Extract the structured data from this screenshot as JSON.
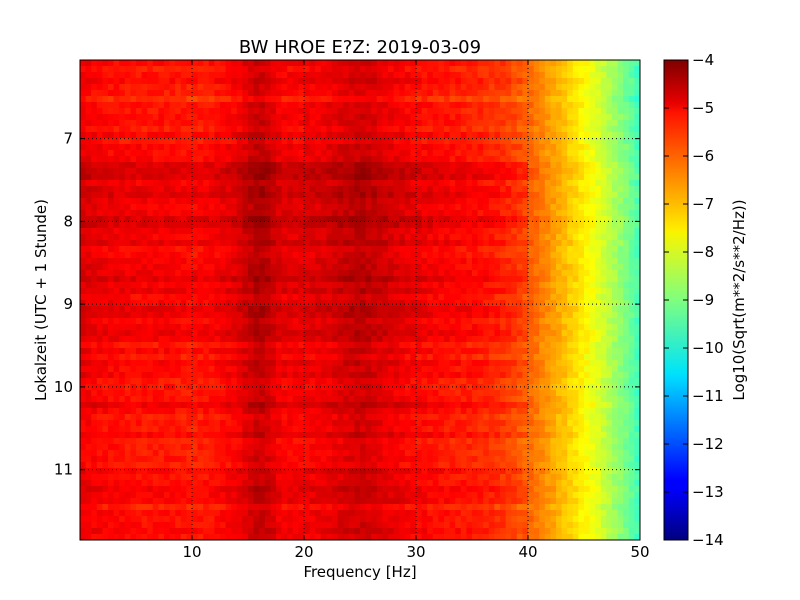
{
  "chart_data": {
    "type": "heatmap",
    "title": "BW HROE E?Z: 2019-03-09",
    "xlabel": "Frequency [Hz]",
    "ylabel": "Lokalzeit (UTC + 1 Stunde)",
    "xlim": [
      0,
      50
    ],
    "ylim": [
      6.05,
      11.85
    ],
    "y_inverted": true,
    "x_ticks": [
      10,
      20,
      30,
      40,
      50
    ],
    "x_tick_labels": [
      "10",
      "20",
      "30",
      "40",
      "50"
    ],
    "y_ticks": [
      7,
      8,
      9,
      10,
      11
    ],
    "y_tick_labels": [
      "7",
      "8",
      "9",
      "10",
      "11"
    ],
    "grid": true,
    "colormap": "jet",
    "colorbar": {
      "label": "Log10(Sqrt(m**2/s**2/Hz))",
      "range": [
        -14,
        -4
      ],
      "ticks": [
        -4,
        -5,
        -6,
        -7,
        -8,
        -9,
        -10,
        -11,
        -12,
        -13,
        -14
      ],
      "tick_labels": [
        "−4",
        "−5",
        "−6",
        "−7",
        "−8",
        "−9",
        "−10",
        "−11",
        "−12",
        "−13",
        "−14"
      ]
    },
    "spectrum_profile": {
      "frequency_hz": [
        0,
        2,
        5,
        8,
        10,
        12,
        14,
        15,
        16,
        17,
        18,
        20,
        22,
        24,
        25,
        26,
        28,
        30,
        32,
        34,
        36,
        38,
        39,
        40,
        41,
        42,
        43,
        44,
        45,
        46,
        47,
        48,
        49,
        50
      ],
      "value_log10": [
        -5.1,
        -5.3,
        -5.4,
        -5.4,
        -5.5,
        -5.4,
        -5.2,
        -4.9,
        -4.7,
        -4.9,
        -5.2,
        -5.2,
        -5.1,
        -4.9,
        -4.8,
        -4.9,
        -5.1,
        -5.3,
        -5.4,
        -5.5,
        -5.6,
        -5.8,
        -6.0,
        -6.2,
        -6.5,
        -6.8,
        -7.1,
        -7.4,
        -7.7,
        -8.0,
        -8.4,
        -8.8,
        -9.2,
        -9.7
      ]
    },
    "time_profile": {
      "time_h": [
        6.05,
        6.5,
        7.0,
        7.3,
        7.5,
        7.8,
        8.0,
        8.3,
        8.5,
        8.8,
        9.0,
        9.3,
        9.5,
        9.8,
        10.0,
        10.3,
        10.5,
        10.8,
        11.0,
        11.3,
        11.5,
        11.85
      ],
      "offset_log10": [
        0.0,
        -0.2,
        0.0,
        0.3,
        0.4,
        0.3,
        0.3,
        0.2,
        0.3,
        0.2,
        0.2,
        0.2,
        0.1,
        0.1,
        0.0,
        0.1,
        0.1,
        0.0,
        0.0,
        0.1,
        0.0,
        0.1
      ]
    }
  }
}
